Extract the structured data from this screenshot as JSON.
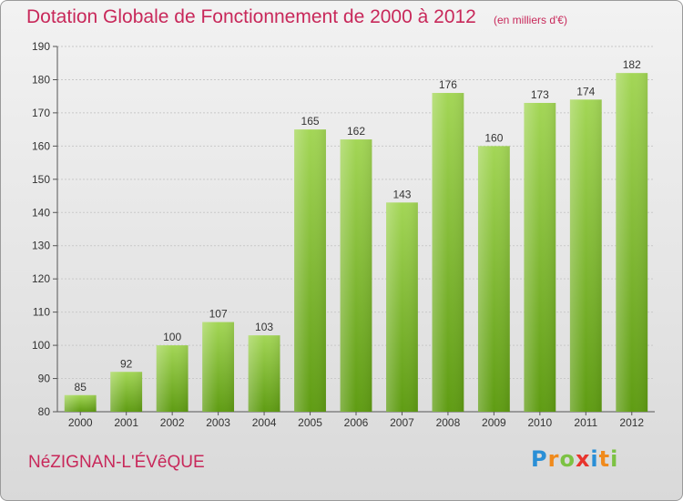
{
  "header": {
    "title": "Dotation Globale de Fonctionnement de 2000 à 2012",
    "unit_note": "(en milliers d'€)"
  },
  "footer": {
    "commune": "NéZIGNAN-L'ÉVêQUE",
    "logo_text": "Proxiti"
  },
  "colors": {
    "title": "#c8285a",
    "bar_top": "#9ed14f",
    "bar_bottom": "#5e9b12"
  },
  "chart_data": {
    "type": "bar",
    "title": "Dotation Globale de Fonctionnement de 2000 à 2012",
    "subtitle": "(en milliers d'€)",
    "categories": [
      "2000",
      "2001",
      "2002",
      "2003",
      "2004",
      "2005",
      "2006",
      "2007",
      "2008",
      "2009",
      "2010",
      "2011",
      "2012"
    ],
    "values": [
      85,
      92,
      100,
      107,
      103,
      165,
      162,
      143,
      176,
      160,
      173,
      174,
      182
    ],
    "ylim": [
      80,
      190
    ],
    "yticks": [
      80,
      90,
      100,
      110,
      120,
      130,
      140,
      150,
      160,
      170,
      180,
      190
    ],
    "grid": true,
    "data_labels": true
  }
}
